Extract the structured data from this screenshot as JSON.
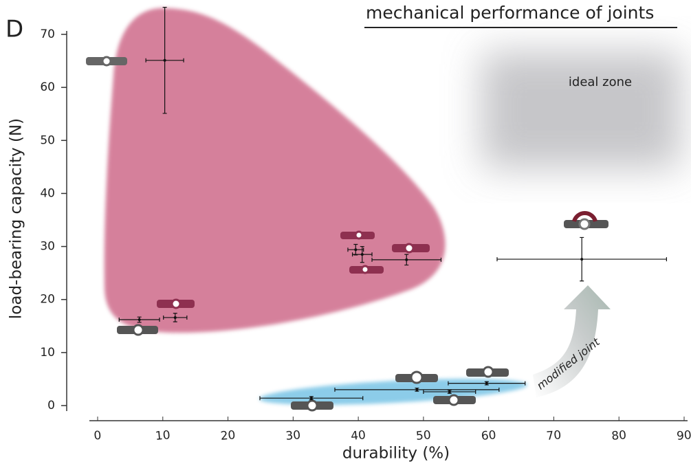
{
  "chart_data": {
    "type": "scatter",
    "panel_label": "D",
    "title": "mechanical performance of joints",
    "xlabel": "durability (%)",
    "ylabel": "load-bearing capacity (N)",
    "annotations": [
      "ideal zone",
      "modified joint"
    ],
    "x": [
      10.3,
      6.4,
      11.9,
      39.6,
      40.6,
      47.4,
      74.3,
      49.0,
      32.8,
      54.0,
      59.7
    ],
    "values": [
      65.1,
      16.2,
      16.6,
      29.4,
      28.5,
      27.5,
      27.6,
      3.0,
      1.4,
      2.6,
      4.2
    ],
    "xerr": [
      2.9,
      3.1,
      1.8,
      1.2,
      1.5,
      5.3,
      13.0,
      12.6,
      7.9,
      4.0,
      5.9
    ],
    "yerr": [
      10.0,
      0.5,
      0.8,
      1.0,
      1.5,
      1.0,
      4.1,
      0.3,
      0.3,
      0.3,
      0.3
    ],
    "color": "#111111",
    "xlim": [
      0,
      90
    ],
    "ylim": [
      0,
      70
    ],
    "xticks": [
      0,
      10,
      20,
      30,
      40,
      50,
      60,
      70,
      80,
      90
    ],
    "yticks": [
      0,
      10,
      20,
      30,
      40,
      50,
      60,
      70
    ]
  }
}
